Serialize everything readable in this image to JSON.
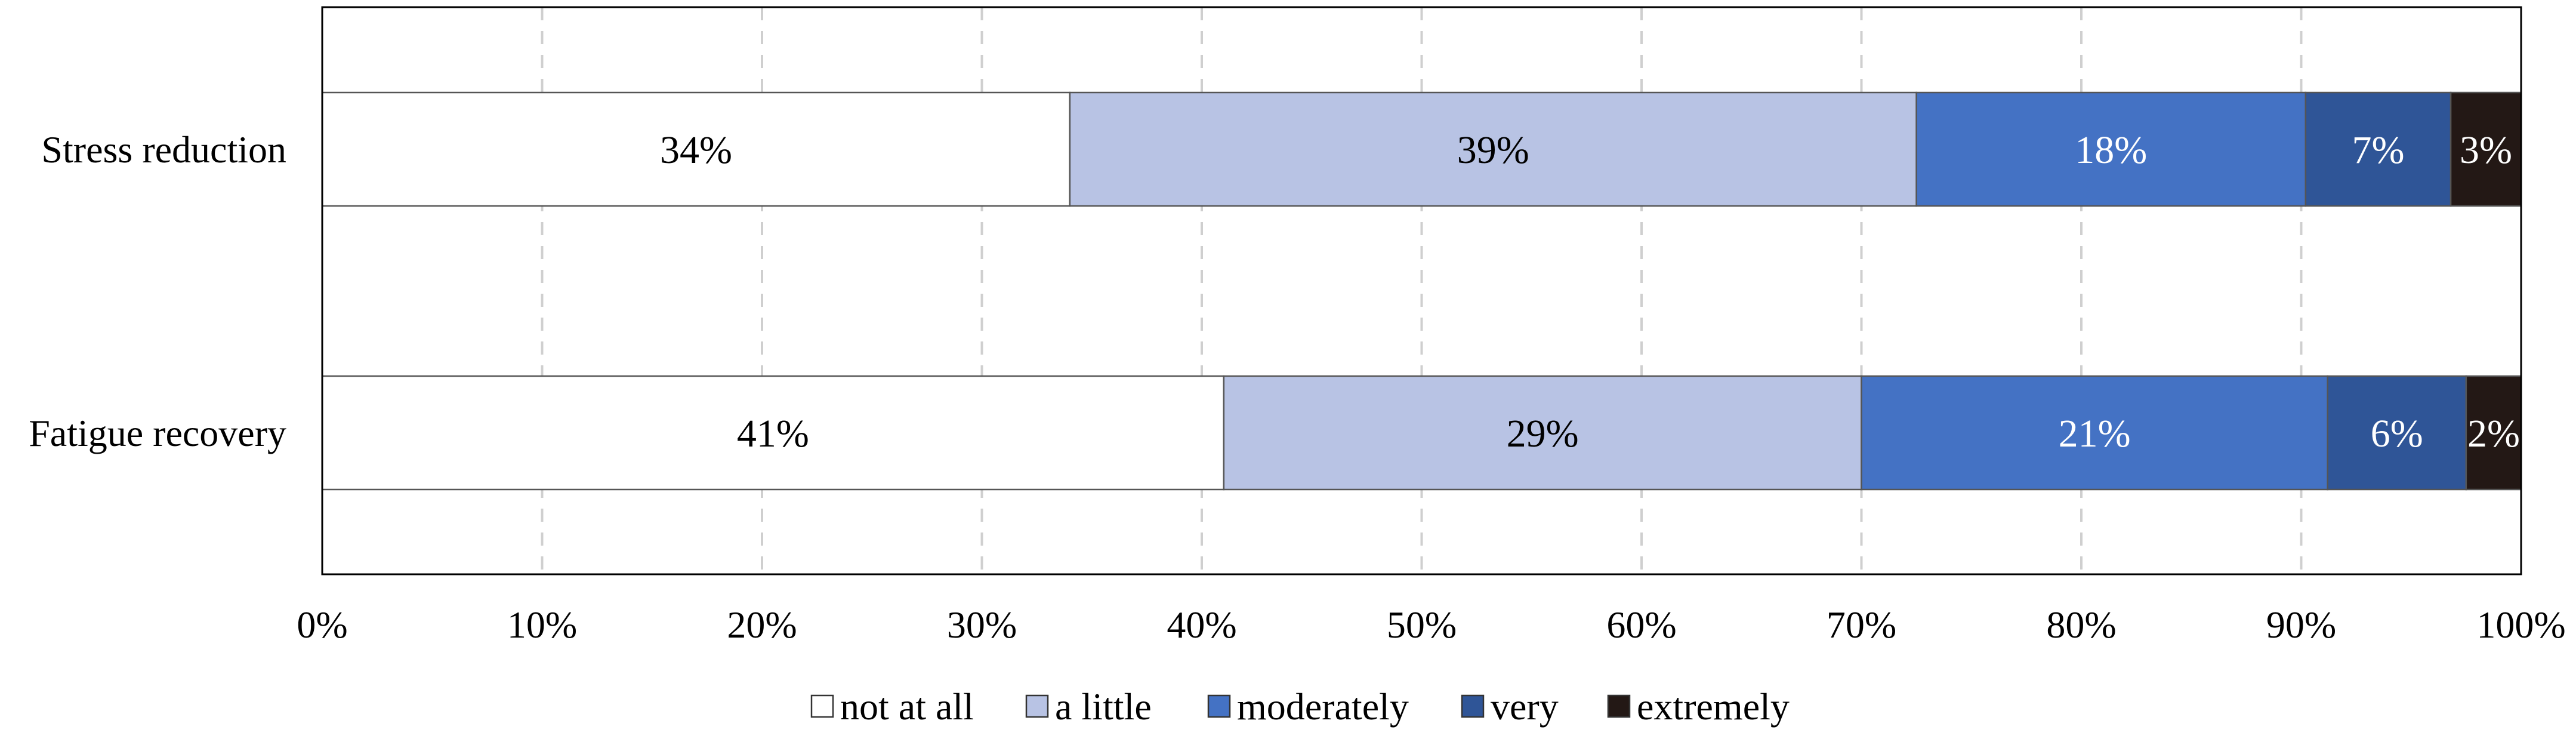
{
  "chart_data": {
    "type": "bar",
    "orientation": "horizontal",
    "stacked": true,
    "percent": true,
    "title": "",
    "xlabel": "",
    "ylabel": "",
    "categories": [
      "Stress reduction",
      "Fatigue recovery"
    ],
    "xlim": [
      0,
      100
    ],
    "xticks": [
      "0%",
      "10%",
      "20%",
      "30%",
      "40%",
      "50%",
      "60%",
      "70%",
      "80%",
      "90%",
      "100%"
    ],
    "grid": "vertical-dashed",
    "legend_position": "bottom",
    "series": [
      {
        "name": "not at all",
        "color": "#ffffff",
        "label_color": "#000000",
        "values": [
          34,
          41
        ],
        "labels": [
          "34%",
          "41%"
        ]
      },
      {
        "name": "a little",
        "color": "#b8c3e4",
        "label_color": "#000000",
        "values": [
          38.5,
          29
        ],
        "labels": [
          "39%",
          "29%"
        ]
      },
      {
        "name": "moderately",
        "color": "#4472c4",
        "label_color": "#ffffff",
        "values": [
          17.7,
          21.2
        ],
        "labels": [
          "18%",
          "21%"
        ]
      },
      {
        "name": "very",
        "color": "#2f5597",
        "label_color": "#ffffff",
        "values": [
          6.6,
          6.3
        ],
        "labels": [
          "7%",
          "6%"
        ]
      },
      {
        "name": "extremely",
        "color": "#231815",
        "label_color": "#ffffff",
        "values": [
          3.2,
          2.5
        ],
        "labels": [
          "3%",
          "2%"
        ]
      }
    ]
  }
}
